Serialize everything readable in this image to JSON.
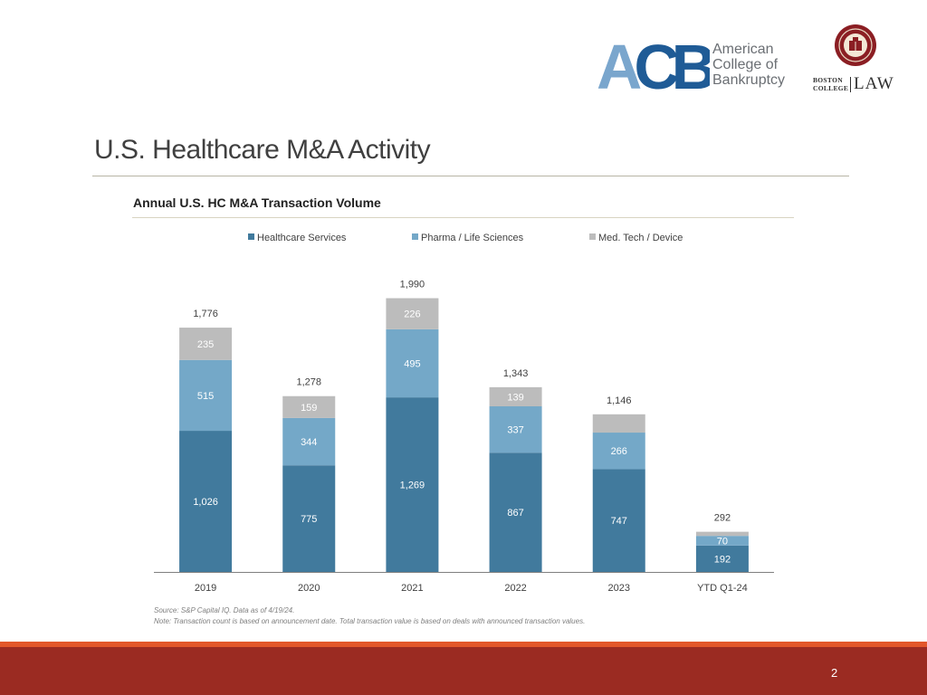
{
  "logos": {
    "acb": {
      "letters": "ACB",
      "name_lines": [
        "American",
        "College of",
        "Bankruptcy"
      ],
      "colors": {
        "light": "#7aa6cd",
        "dark": "#1f5b96"
      }
    },
    "bc": {
      "words_small": [
        "BOSTON",
        "COLLEGE"
      ],
      "word_large": "LAW",
      "colors": {
        "seal": "#8b1e23"
      }
    }
  },
  "slide": {
    "title": "U.S. Healthcare M&A Activity",
    "page_number": "2"
  },
  "chart_data": {
    "type": "bar",
    "stacked": true,
    "title": "Annual U.S. HC M&A Transaction Volume",
    "categories": [
      "2019",
      "2020",
      "2021",
      "2022",
      "2023",
      "YTD Q1-24"
    ],
    "series": [
      {
        "name": "Healthcare Services",
        "values": [
          1026,
          775,
          1269,
          867,
          747,
          192
        ],
        "labels": [
          "1,026",
          "775",
          "1,269",
          "867",
          "747",
          "192"
        ],
        "color": "#417a9d"
      },
      {
        "name": "Pharma / Life Sciences",
        "values": [
          515,
          344,
          495,
          337,
          266,
          70
        ],
        "labels": [
          "515",
          "344",
          "495",
          "337",
          "266",
          "70"
        ],
        "color": "#74a8c8"
      },
      {
        "name": "Med. Tech / Device",
        "values": [
          235,
          159,
          226,
          139,
          133,
          30
        ],
        "labels": [
          "235",
          "159",
          "226",
          "139",
          "",
          ""
        ],
        "color": "#bcbcbc"
      }
    ],
    "totals": [
      1776,
      1278,
      1990,
      1343,
      1146,
      292
    ],
    "total_labels": [
      "1,776",
      "1,278",
      "1,990",
      "1,343",
      "1,146",
      "292"
    ],
    "ylim": [
      0,
      2000
    ],
    "grid": false,
    "legend": "top"
  },
  "notes": {
    "source": "Source: S&P Capital IQ. Data as of 4/19/24.",
    "note": "Note: Transaction count is based on announcement date. Total transaction value is based on deals with announced transaction values."
  }
}
